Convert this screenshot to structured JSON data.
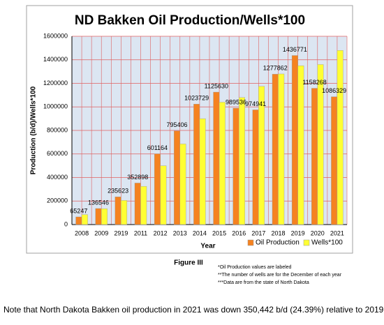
{
  "chart_data": {
    "type": "bar",
    "title": "ND Bakken Oil Production/Wells*100",
    "y_label": "Production (b/d)/Wells*100",
    "x_label": "Year",
    "categories": [
      "2008",
      "2009",
      "2919",
      "2011",
      "2012",
      "2013",
      "2014",
      "2015",
      "2016",
      "2017",
      "2018",
      "2019",
      "2020",
      "2021"
    ],
    "series": [
      {
        "name": "Oil Production",
        "color": "#f58220",
        "values": [
          65247,
          136546,
          235623,
          352898,
          601164,
          795406,
          1023729,
          1125630,
          989536,
          974941,
          1277862,
          1436771,
          1158268,
          1086329
        ]
      },
      {
        "name": "Wells*100",
        "color": "#ffff33",
        "values": [
          85000,
          135000,
          205000,
          325000,
          500000,
          685000,
          900000,
          1040000,
          1080000,
          1175000,
          1280000,
          1350000,
          1360000,
          1480000
        ]
      }
    ],
    "ylim": [
      0,
      1600000
    ],
    "yticks": [
      0,
      200000,
      400000,
      600000,
      800000,
      1000000,
      1200000,
      1400000,
      1600000
    ],
    "grid": true
  },
  "figure_caption": "Figure III",
  "notes": [
    "*Oil Production values are labeled",
    "**The number of wells are for the December of each year",
    "***Data are from the state of North Dakota"
  ],
  "body_text": "Note that North Dakota Bakken oil production in 2021 was down 350,442 b/d (24.39%) relative to 2019"
}
